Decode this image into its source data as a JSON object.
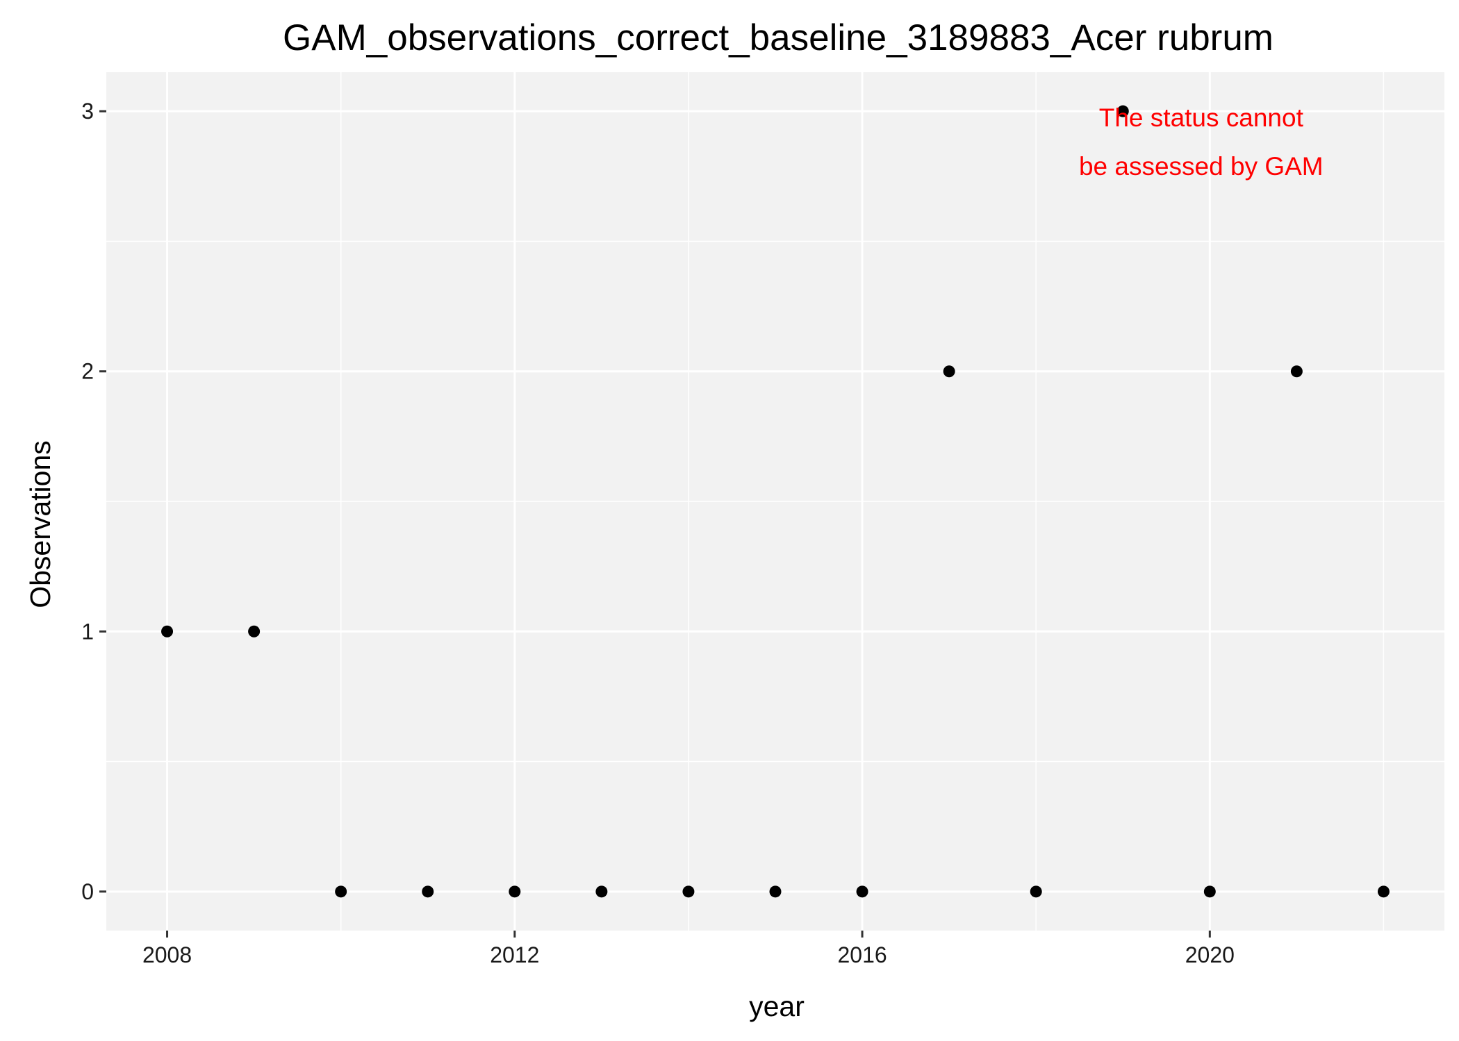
{
  "chart_data": {
    "type": "scatter",
    "title": "GAM_observations_correct_baseline_3189883_Acer rubrum",
    "xlabel": "year",
    "ylabel": "Observations",
    "x": [
      2008,
      2009,
      2010,
      2011,
      2012,
      2013,
      2014,
      2015,
      2016,
      2017,
      2018,
      2019,
      2020,
      2021,
      2022
    ],
    "y": [
      1,
      1,
      0,
      0,
      0,
      0,
      0,
      0,
      0,
      2,
      0,
      3,
      0,
      2,
      0
    ],
    "xlim": [
      2007.3,
      2022.7
    ],
    "ylim": [
      -0.15,
      3.15
    ],
    "x_ticks": [
      2008,
      2012,
      2016,
      2020
    ],
    "x_minor_ticks": [
      2010,
      2014,
      2018,
      2022
    ],
    "y_ticks": [
      0,
      1,
      2,
      3
    ],
    "y_minor_ticks": [
      0.5,
      1.5,
      2.5
    ],
    "grid": true,
    "colors": {
      "panel_background": "#f2f2f2",
      "grid": "#ffffff",
      "point": "#000000",
      "annotation": "#ff0000"
    },
    "annotation": {
      "lines": [
        "The status cannot",
        "be assessed by GAM"
      ],
      "anchor_x": 2019.9,
      "anchor_y": 2.88
    }
  }
}
